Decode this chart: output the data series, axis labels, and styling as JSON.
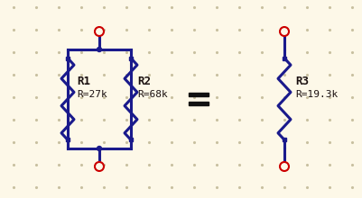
{
  "bg_color": "#fdf8e8",
  "dot_color": "#c8c0a0",
  "line_color": "#1a1a8c",
  "junction_color": "#1a1a8c",
  "terminal_color": "#cc0000",
  "text_color": "#1a1010",
  "equal_color": "#111111",
  "r1_label": "R1",
  "r1_value": "R=27k",
  "r2_label": "R2",
  "r2_value": "R=68k",
  "r3_label": "R3",
  "r3_value": "R=19.3k",
  "figsize": [
    4.02,
    2.2
  ],
  "dpi": 100
}
